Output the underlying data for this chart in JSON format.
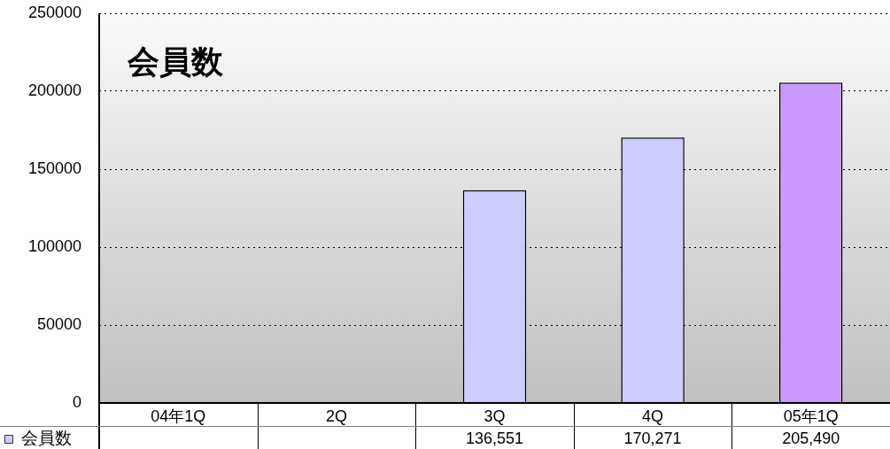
{
  "chart_data": {
    "type": "bar",
    "title": "会員数",
    "categories": [
      "04年1Q",
      "2Q",
      "3Q",
      "4Q",
      "05年1Q"
    ],
    "series": [
      {
        "name": "会員数",
        "color": "#ccccff",
        "colors": [
          "#ccccff",
          "#ccccff",
          "#ccccff",
          "#ccccff",
          "#cc99ff"
        ],
        "values": [
          null,
          null,
          136551,
          170271,
          205490
        ],
        "value_labels": [
          null,
          null,
          "136,551",
          "170,271",
          "205,490"
        ]
      }
    ],
    "ylim": [
      0,
      250000
    ],
    "yticks": [
      0,
      50000,
      100000,
      150000,
      200000,
      250000
    ],
    "grid": "y",
    "legend": "bottom left"
  }
}
